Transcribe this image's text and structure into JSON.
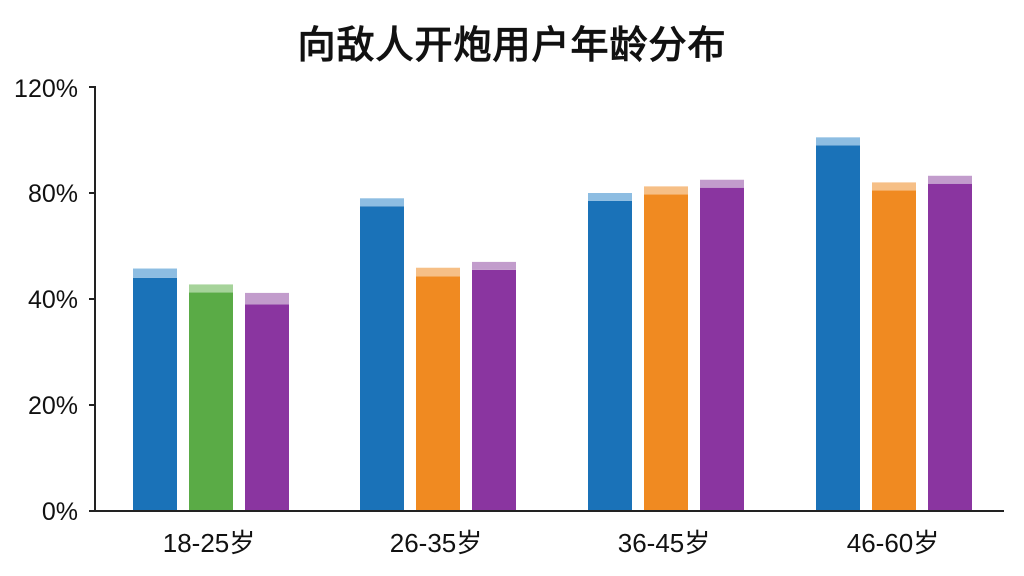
{
  "chart_data": {
    "type": "bar",
    "title": "向敌人开炮用户年龄分布",
    "xlabel": "",
    "ylabel": "",
    "categories": [
      "18-25岁",
      "26-35岁",
      "36-45岁",
      "46-60岁"
    ],
    "yticks": [
      "0%",
      "20%",
      "40%",
      "80%",
      "120%"
    ],
    "ylim": [
      0,
      120
    ],
    "grid": false,
    "legend": "none",
    "bars": [
      [
        {
          "value": 48,
          "cap": 3.5,
          "color": "#1a72b8",
          "cap_color": "#8dbde2"
        },
        {
          "value": 42.5,
          "cap": 3,
          "color": "#5aab46",
          "cap_color": "#a6d39a"
        },
        {
          "value": 39,
          "cap": 3.3,
          "color": "#8a35a0",
          "cap_color": "#c29ccc"
        }
      ],
      [
        {
          "value": 75,
          "cap": 3,
          "color": "#1a72b8",
          "cap_color": "#8dbde2"
        },
        {
          "value": 48.5,
          "cap": 3.3,
          "color": "#f08a21",
          "cap_color": "#f6bf86"
        },
        {
          "value": 51,
          "cap": 3,
          "color": "#8a35a0",
          "cap_color": "#c29ccc"
        }
      ],
      [
        {
          "value": 77,
          "cap": 3,
          "color": "#1a72b8",
          "cap_color": "#8dbde2"
        },
        {
          "value": 79.5,
          "cap": 3,
          "color": "#f08a21",
          "cap_color": "#f6bf86"
        },
        {
          "value": 82,
          "cap": 3,
          "color": "#8a35a0",
          "cap_color": "#c29ccc"
        }
      ],
      [
        {
          "value": 98,
          "cap": 3,
          "color": "#1a72b8",
          "cap_color": "#8dbde2"
        },
        {
          "value": 81,
          "cap": 3,
          "color": "#f08a21",
          "cap_color": "#f6bf86"
        },
        {
          "value": 83.5,
          "cap": 3,
          "color": "#8a35a0",
          "cap_color": "#c29ccc"
        }
      ]
    ]
  }
}
